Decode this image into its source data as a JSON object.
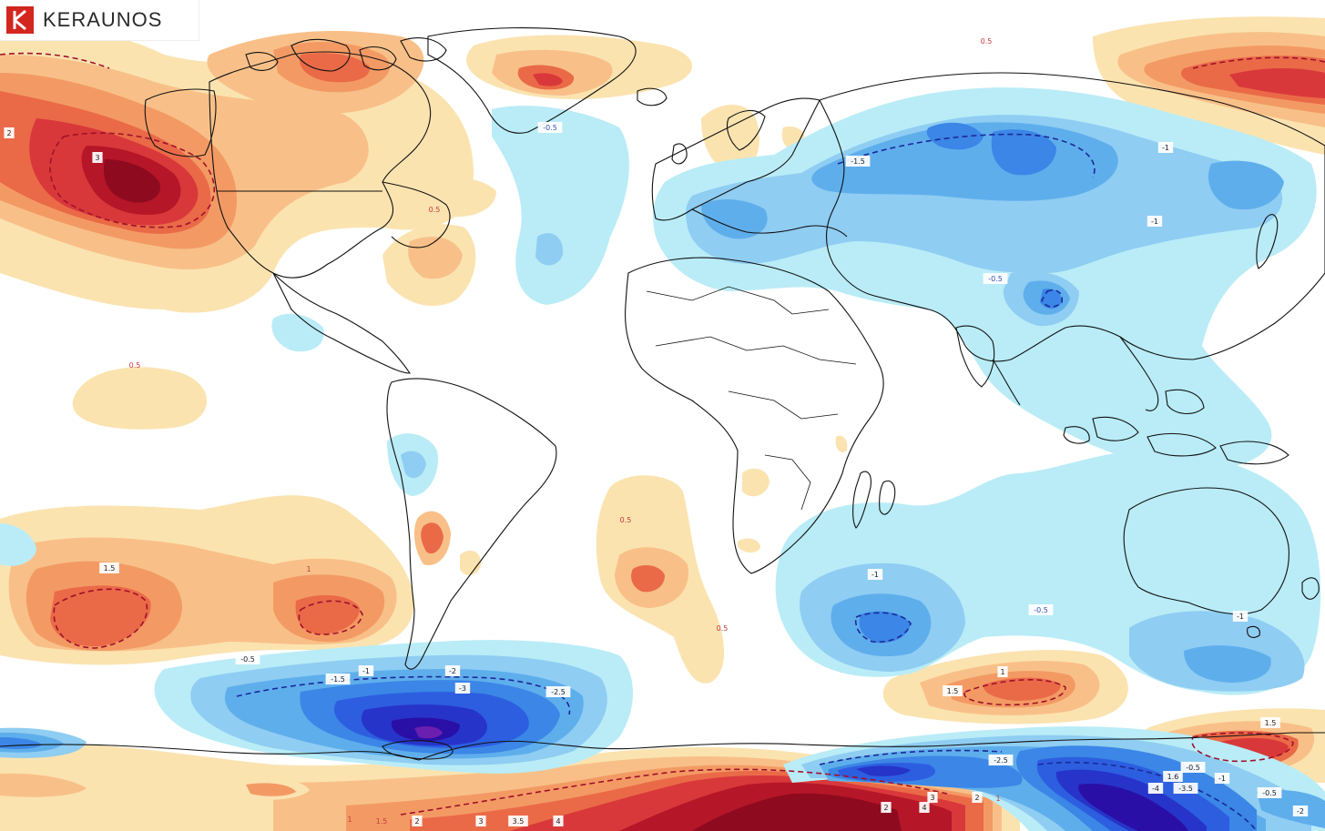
{
  "brand": {
    "name": "KERAUNOS"
  },
  "colors": {
    "warm_0_5": "#fbe3b0",
    "warm_1": "#f8c088",
    "warm_1_5": "#f39a64",
    "warm_2": "#ea6a48",
    "warm_2_5": "#d9383a",
    "warm_3": "#b51628",
    "warm_4": "#8e0a1f",
    "cold_0_5": "#b9ecf7",
    "cold_1": "#8fcdf2",
    "cold_1_5": "#5faeec",
    "cold_2": "#3b86e6",
    "cold_2_5": "#2d5ee0",
    "cold_3": "#2634c9",
    "cold_4": "#2a0fa6",
    "coast": "#111111"
  },
  "contour_labels": [
    "0.5",
    "2",
    "3",
    "-0.5",
    "0.5",
    "-1.5",
    "-1",
    "-1",
    "-0.5",
    "0.5",
    "1.5",
    "1",
    "-0.5",
    "-1.5",
    "-1",
    "-2",
    "-3",
    "-2.5",
    "0.5",
    "0.5",
    "-1",
    "-0.5",
    "-1",
    "1",
    "1.5",
    "1.5",
    "-2.5",
    "1.6",
    "-4",
    "-3.5",
    "-0.5",
    "-1",
    "-0.5",
    "-2",
    "1",
    "1.5",
    "2",
    "3",
    "3.5",
    "4",
    "2",
    "4",
    "3",
    "2",
    "1"
  ]
}
